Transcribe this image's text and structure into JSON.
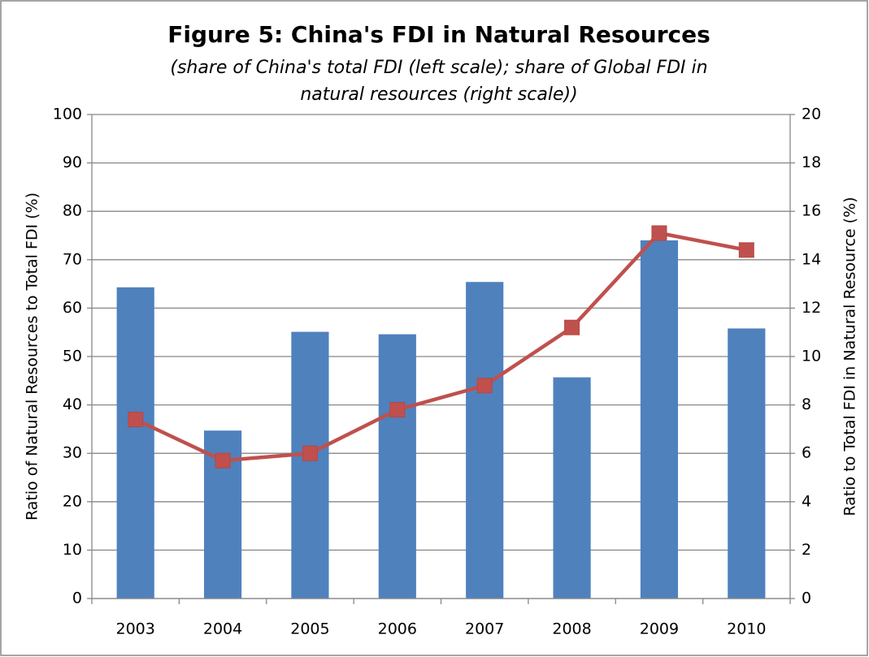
{
  "chart_data": {
    "type": "bar",
    "title": "Figure 5: China's FDI in Natural Resources",
    "subtitle": [
      "(share of China's total FDI (left scale); share of Global FDI in",
      "natural resources (right scale))"
    ],
    "ylabel": "Ratio of Natural Resources to Total FDI (%)",
    "y2label": "Ratio to Total FDI in Natural Resource (%)",
    "categories": [
      "2003",
      "2004",
      "2005",
      "2006",
      "2007",
      "2008",
      "2009",
      "2010"
    ],
    "series": [
      {
        "type": "bar",
        "color": "#4f81bd",
        "values": [
          64.3,
          34.7,
          55.1,
          54.6,
          65.4,
          45.7,
          74.0,
          55.8
        ]
      },
      {
        "type": "line",
        "axis": "y2",
        "color": "#c0504d",
        "values": [
          7.4,
          5.7,
          6.0,
          7.8,
          8.8,
          11.2,
          15.1,
          14.4
        ]
      }
    ],
    "ylim": [
      0,
      100
    ],
    "yticks": [
      0,
      10,
      20,
      30,
      40,
      50,
      60,
      70,
      80,
      90,
      100
    ],
    "y2lim": [
      0,
      20
    ],
    "y2ticks": [
      0,
      2,
      4,
      6,
      8,
      10,
      12,
      14,
      16,
      18,
      20
    ],
    "grid": true
  }
}
